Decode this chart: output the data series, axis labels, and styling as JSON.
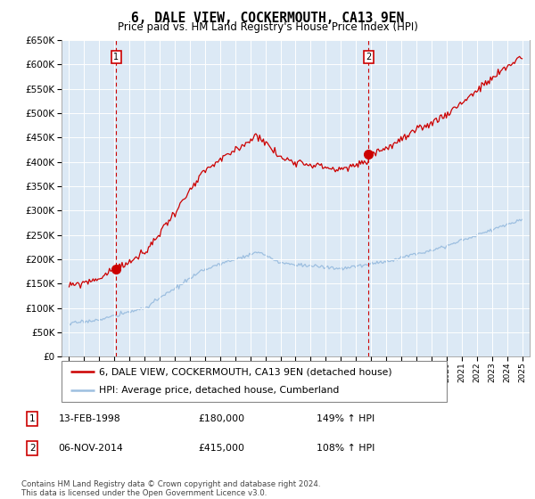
{
  "title": "6, DALE VIEW, COCKERMOUTH, CA13 9EN",
  "subtitle": "Price paid vs. HM Land Registry's House Price Index (HPI)",
  "legend_line1": "6, DALE VIEW, COCKERMOUTH, CA13 9EN (detached house)",
  "legend_line2": "HPI: Average price, detached house, Cumberland",
  "annotation1_date": "13-FEB-1998",
  "annotation1_price": "£180,000",
  "annotation1_hpi": "149% ↑ HPI",
  "annotation2_date": "06-NOV-2014",
  "annotation2_price": "£415,000",
  "annotation2_hpi": "108% ↑ HPI",
  "footer": "Contains HM Land Registry data © Crown copyright and database right 2024.\nThis data is licensed under the Open Government Licence v3.0.",
  "hpi_color": "#9dbfe0",
  "price_color": "#cc0000",
  "annotation_box_color": "#cc0000",
  "plot_bg": "#dce9f5",
  "ylim": [
    0,
    650000
  ],
  "yticks": [
    0,
    50000,
    100000,
    150000,
    200000,
    250000,
    300000,
    350000,
    400000,
    450000,
    500000,
    550000,
    600000,
    650000
  ],
  "annotation1_year": 1998.12,
  "annotation2_year": 2014.84,
  "sale1_value": 180000,
  "sale2_value": 415000,
  "hpi_seed": 17,
  "red_seed": 99
}
